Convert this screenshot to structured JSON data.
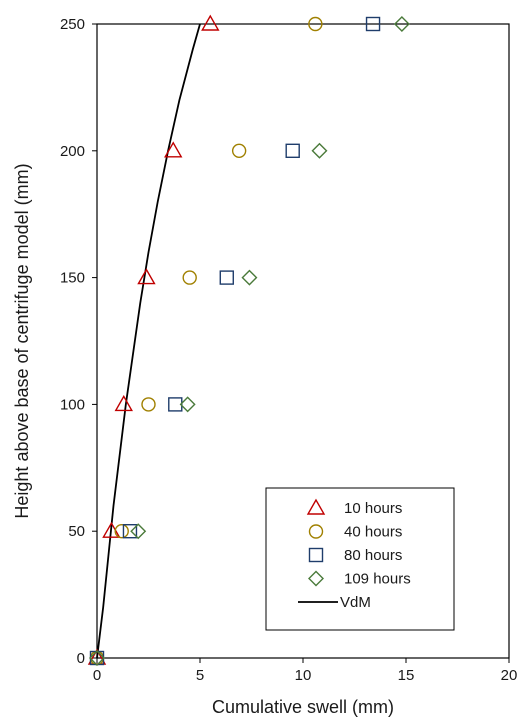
{
  "chart_data": {
    "type": "scatter",
    "xlabel": "Cumulative swell (mm)",
    "ylabel": "Height above base of centrifuge model (mm)",
    "xlim": [
      0,
      20
    ],
    "ylim": [
      0,
      250
    ],
    "xticks": [
      0,
      5,
      10,
      15,
      20
    ],
    "yticks": [
      0,
      50,
      100,
      150,
      200,
      250
    ],
    "grid": false,
    "legend_position": "bottom-right",
    "series": [
      {
        "name": "10 hours",
        "marker": "triangle",
        "color": "#c00000",
        "points": [
          [
            0,
            0
          ],
          [
            0.7,
            50
          ],
          [
            1.3,
            100
          ],
          [
            2.4,
            150
          ],
          [
            3.7,
            200
          ],
          [
            5.5,
            250
          ]
        ]
      },
      {
        "name": "40 hours",
        "marker": "circle",
        "color": "#a08000",
        "points": [
          [
            0,
            0
          ],
          [
            1.2,
            50
          ],
          [
            2.5,
            100
          ],
          [
            4.5,
            150
          ],
          [
            6.9,
            200
          ],
          [
            10.6,
            250
          ]
        ]
      },
      {
        "name": "80 hours",
        "marker": "square",
        "color": "#1f3d6b",
        "points": [
          [
            0,
            0
          ],
          [
            1.6,
            50
          ],
          [
            3.8,
            100
          ],
          [
            6.3,
            150
          ],
          [
            9.5,
            200
          ],
          [
            13.4,
            250
          ]
        ]
      },
      {
        "name": "109 hours",
        "marker": "diamond",
        "color": "#4a7a3a",
        "points": [
          [
            0,
            0
          ],
          [
            2.0,
            50
          ],
          [
            4.4,
            100
          ],
          [
            7.4,
            150
          ],
          [
            10.8,
            200
          ],
          [
            14.8,
            250
          ]
        ]
      },
      {
        "name": "VdM",
        "line": true,
        "color": "#000000",
        "points": [
          [
            0,
            0
          ],
          [
            0.3,
            20
          ],
          [
            0.55,
            40
          ],
          [
            0.8,
            60
          ],
          [
            1.1,
            80
          ],
          [
            1.4,
            100
          ],
          [
            1.75,
            120
          ],
          [
            2.1,
            140
          ],
          [
            2.5,
            160
          ],
          [
            2.95,
            180
          ],
          [
            3.45,
            200
          ],
          [
            4.0,
            220
          ],
          [
            4.65,
            240
          ],
          [
            5.0,
            250
          ]
        ]
      }
    ]
  }
}
